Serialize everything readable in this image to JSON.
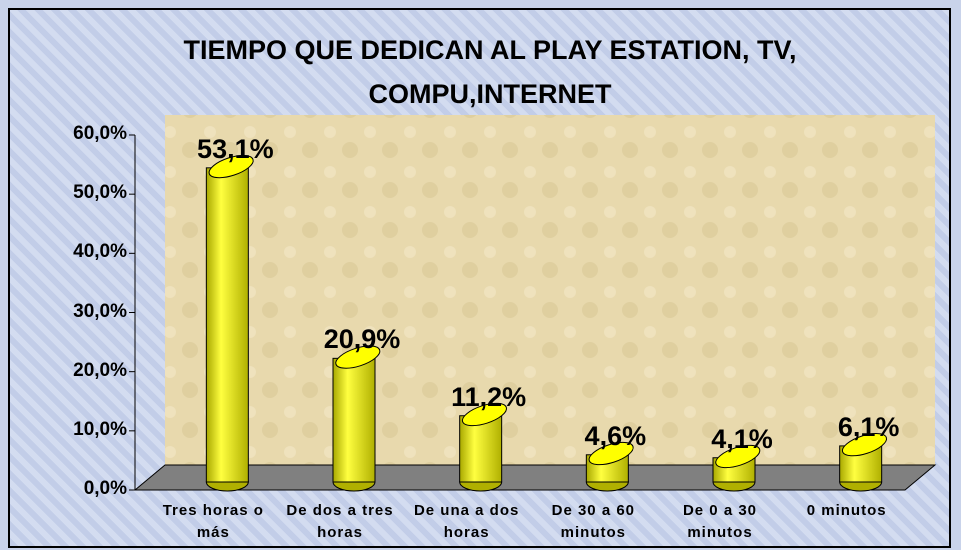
{
  "chart_data": {
    "type": "bar3d",
    "title": "TIEMPO QUE DEDICAN AL PLAY ESTATION, TV, COMPU,INTERNET",
    "categories": [
      "Tres horas o más",
      "De dos a tres horas",
      "De una a dos horas",
      "De 30 a 60 minutos",
      "De 0 a 30 minutos",
      "0 minutos"
    ],
    "values": [
      53.1,
      20.9,
      11.2,
      4.6,
      4.1,
      6.1
    ],
    "value_labels": [
      "53,1%",
      "20,9%",
      "11,2%",
      "4,6%",
      "4,1%",
      "6,1%"
    ],
    "color": "#ffff00",
    "ylim": [
      0,
      60
    ],
    "yticks": [
      {
        "value": 0,
        "label": "0,0%"
      },
      {
        "value": 10,
        "label": "10,0%"
      },
      {
        "value": 20,
        "label": "20,0%"
      },
      {
        "value": 30,
        "label": "30,0%"
      },
      {
        "value": 40,
        "label": "40,0%"
      },
      {
        "value": 50,
        "label": "50,0%"
      },
      {
        "value": 60,
        "label": "60,0%"
      }
    ]
  }
}
